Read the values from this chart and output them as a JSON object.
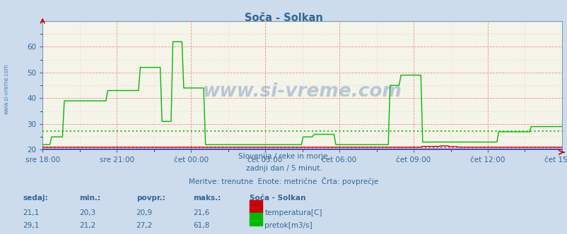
{
  "title": "Soča - Solkan",
  "bg_color": "#ccdcec",
  "plot_bg_color": "#f4f4e8",
  "grid_color_major": "#ee8888",
  "grid_color_minor": "#f8cccc",
  "xlabel_color": "#336699",
  "title_color": "#336699",
  "text_color": "#336699",
  "watermark": "www.si-vreme.com",
  "subtitle1": "Slovenija / reke in morje.",
  "subtitle2": "zadnji dan / 5 minut.",
  "subtitle3": "Meritve: trenutne  Enote: metrične  Črta: povprečje",
  "x_labels": [
    "sre 18:00",
    "sre 21:00",
    "čet 00:00",
    "čet 03:00",
    "čet 06:00",
    "čet 09:00",
    "čet 12:00",
    "čet 15:00"
  ],
  "ylim": [
    20,
    70
  ],
  "yticks": [
    20,
    30,
    40,
    50,
    60
  ],
  "temp_color": "#cc0000",
  "flow_color": "#00bb00",
  "height_color": "#0000cc",
  "avg_temp_color": "#dd3333",
  "avg_flow_color": "#00cc00",
  "avg_temp": 20.9,
  "avg_flow": 27.2,
  "legend_label_temp": "temperatura[C]",
  "legend_label_flow": "pretok[m3/s]",
  "stats_headers": [
    "sedaj:",
    "min.:",
    "povpr.:",
    "maks.:"
  ],
  "stats_temp": [
    "21,1",
    "20,3",
    "20,9",
    "21,6"
  ],
  "stats_flow": [
    "29,1",
    "21,2",
    "27,2",
    "61,8"
  ],
  "station_label": "Soča - Solkan"
}
